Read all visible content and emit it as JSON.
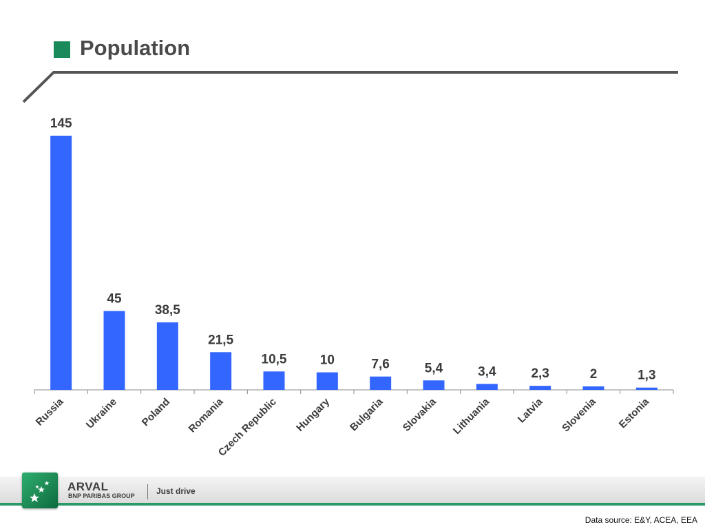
{
  "slide": {
    "title": "Population",
    "accent_color": "#1a8a5a",
    "source": "Data source: E&Y, ACEA, EEA"
  },
  "footer": {
    "brand": "ARVAL",
    "brand_sub": "BNP PARIBAS GROUP",
    "tagline": "Just drive",
    "logo_icon": "bnp-stars-logo-icon"
  },
  "chart_data": {
    "type": "bar",
    "title": "",
    "xlabel": "",
    "ylabel": "",
    "ylim": [
      0,
      145
    ],
    "grid": false,
    "bar_color": "#3366ff",
    "categories": [
      "Russia",
      "Ukraine",
      "Poland",
      "Romania",
      "Czech Republic",
      "Hungary",
      "Bulgaria",
      "Slovakia",
      "Lithuania",
      "Latvia",
      "Slovenia",
      "Estonia"
    ],
    "values": [
      145,
      45,
      38.5,
      21.5,
      10.5,
      10,
      7.6,
      5.4,
      3.4,
      2.3,
      2,
      1.3
    ],
    "value_labels": [
      "145",
      "45",
      "38,5",
      "21,5",
      "10,5",
      "10",
      "7,6",
      "5,4",
      "3,4",
      "2,3",
      "2",
      "1,3"
    ]
  }
}
